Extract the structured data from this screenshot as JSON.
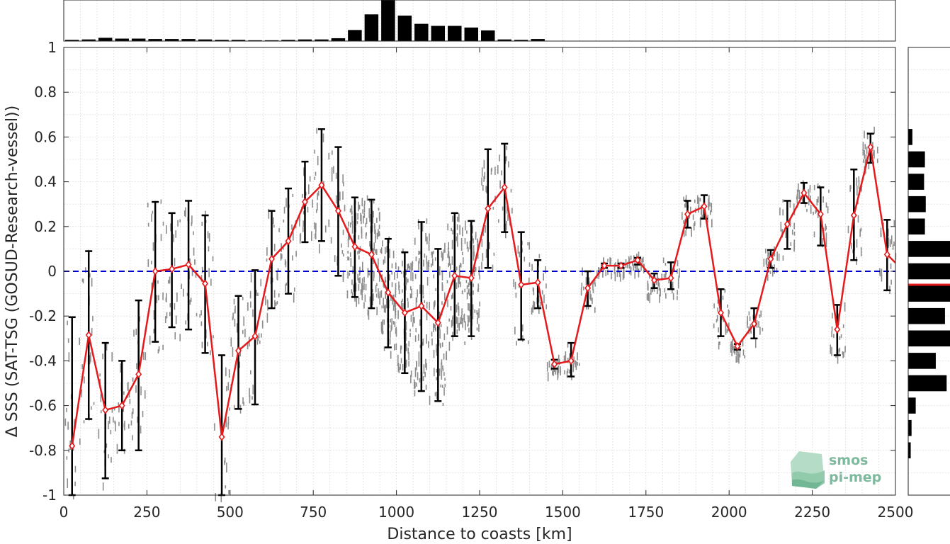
{
  "chart_data": {
    "type": "line",
    "title": "",
    "xlabel": "Distance to coasts [km]",
    "ylabel": "Δ SSS (SAT-TSG (GOSUD-Research-vessel))",
    "xlim": [
      0,
      2500
    ],
    "ylim": [
      -1,
      1
    ],
    "xticks": [
      0,
      250,
      500,
      750,
      1000,
      1250,
      1500,
      1750,
      2000,
      2250,
      2500
    ],
    "yticks": [
      -1,
      -0.8,
      -0.6,
      -0.4,
      -0.2,
      0,
      0.2,
      0.4,
      0.6,
      0.8,
      1
    ],
    "xtick_labels": [
      "0",
      "250",
      "500",
      "750",
      "1000",
      "1250",
      "1500",
      "1750",
      "2000",
      "2250",
      "2500"
    ],
    "ytick_labels": [
      "-1",
      "-0.8",
      "-0.6",
      "-0.4",
      "-0.2",
      "0",
      "0.2",
      "0.4",
      "0.6",
      "0.8",
      "1"
    ],
    "grid": true,
    "reference_line": {
      "y": 0,
      "style": "dashed",
      "color": "#0000cc"
    },
    "mean_series": {
      "color": "#e41a1c",
      "marker": "diamond",
      "x": [
        25,
        75,
        125,
        175,
        225,
        275,
        325,
        375,
        425,
        475,
        525,
        575,
        625,
        675,
        725,
        775,
        825,
        875,
        925,
        975,
        1025,
        1075,
        1125,
        1175,
        1225,
        1275,
        1325,
        1375,
        1425,
        1475,
        1525,
        1575,
        1625,
        1675,
        1725,
        1775,
        1825,
        1875,
        1925,
        1975,
        2025,
        2075,
        2125,
        2175,
        2225,
        2275,
        2325,
        2375,
        2425,
        2475
      ],
      "y": [
        -0.78,
        -0.285,
        -0.62,
        -0.6,
        -0.46,
        0.0,
        0.01,
        0.03,
        -0.055,
        -0.74,
        -0.355,
        -0.29,
        0.055,
        0.135,
        0.31,
        0.385,
        0.27,
        0.11,
        0.075,
        -0.095,
        -0.185,
        -0.155,
        -0.23,
        -0.02,
        -0.03,
        0.28,
        0.375,
        -0.06,
        -0.05,
        -0.415,
        -0.4,
        -0.075,
        0.025,
        0.025,
        0.05,
        -0.04,
        -0.03,
        0.255,
        0.29,
        -0.185,
        -0.335,
        -0.235,
        0.055,
        0.21,
        0.35,
        0.255,
        -0.26,
        0.25,
        0.555,
        0.075
      ],
      "err_low": [
        -1.0,
        -0.66,
        -0.925,
        -0.8,
        -0.8,
        -0.315,
        -0.25,
        -0.26,
        -0.365,
        -1.0,
        -0.615,
        -0.595,
        -0.165,
        -0.1,
        0.13,
        0.135,
        -0.02,
        -0.115,
        -0.165,
        -0.34,
        -0.455,
        -0.535,
        -0.58,
        -0.29,
        -0.29,
        0.015,
        0.175,
        -0.305,
        -0.165,
        -0.435,
        -0.47,
        -0.155,
        0.015,
        0.015,
        0.03,
        -0.075,
        -0.08,
        0.195,
        0.235,
        -0.29,
        -0.35,
        -0.3,
        0.015,
        0.1,
        0.305,
        0.115,
        -0.375,
        0.05,
        0.485,
        -0.085
      ],
      "err_high": [
        -0.205,
        0.09,
        -0.32,
        -0.4,
        -0.13,
        0.31,
        0.26,
        0.315,
        0.25,
        -0.375,
        -0.11,
        0.005,
        0.27,
        0.37,
        0.49,
        0.635,
        0.555,
        0.33,
        0.32,
        0.145,
        0.085,
        0.22,
        0.1,
        0.26,
        0.225,
        0.545,
        0.57,
        0.175,
        0.05,
        -0.395,
        -0.32,
        0.0,
        0.035,
        0.035,
        0.06,
        -0.01,
        0.04,
        0.315,
        0.34,
        -0.08,
        -0.325,
        -0.165,
        0.095,
        0.315,
        0.395,
        0.375,
        -0.15,
        0.455,
        0.615,
        0.23
      ]
    },
    "top_histogram": {
      "bins_x": [
        25,
        75,
        125,
        175,
        225,
        275,
        325,
        375,
        425,
        475,
        525,
        575,
        625,
        675,
        725,
        775,
        825,
        875,
        925,
        975,
        1025,
        1075,
        1125,
        1175,
        1225,
        1275,
        1325,
        1375,
        1425
      ],
      "counts": [
        3,
        4,
        8,
        6,
        6,
        5,
        5,
        5,
        4,
        3,
        3,
        2,
        2,
        3,
        4,
        4,
        7,
        27,
        65,
        100,
        62,
        42,
        37,
        37,
        33,
        26,
        4,
        3,
        5
      ]
    },
    "right_histogram": {
      "bins_y": [
        -0.8,
        -0.7,
        -0.6,
        -0.5,
        -0.4,
        -0.3,
        -0.2,
        -0.1,
        0.0,
        0.1,
        0.2,
        0.3,
        0.4,
        0.5,
        0.6
      ],
      "counts": [
        6,
        8,
        18,
        92,
        66,
        100,
        88,
        100,
        100,
        100,
        40,
        42,
        38,
        40,
        10
      ],
      "mean_line": {
        "y": -0.06,
        "color": "#e41a1c"
      }
    }
  },
  "logo": {
    "line1": "smos",
    "line2": "pi-mep"
  }
}
